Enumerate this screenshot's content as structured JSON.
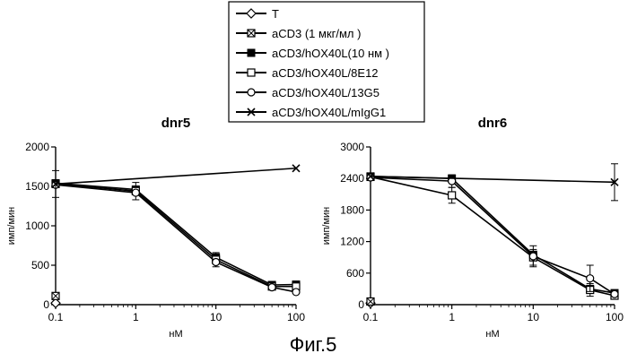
{
  "figure": {
    "caption": "Фиг.5"
  },
  "legend": {
    "entries": [
      {
        "label": "T",
        "marker": "diamond-open"
      },
      {
        "label": "aCD3 (1 мкг/мл   )",
        "marker": "square-crossed"
      },
      {
        "label": "aCD3/hOX40L(10 нм )",
        "marker": "square-filled"
      },
      {
        "label": "aCD3/hOX40L/8E12",
        "marker": "square-open"
      },
      {
        "label": "aCD3/hOX40L/13G5",
        "marker": "circle-open"
      },
      {
        "label": "aCD3/hOX40L/mIgG1",
        "marker": "x"
      }
    ]
  },
  "chart_data": [
    {
      "type": "line",
      "title": "dnr5",
      "xlabel": "нМ",
      "ylabel": "имп/мин",
      "x_scale": "log",
      "xlim": [
        0.1,
        100
      ],
      "ylim": [
        0,
        2000
      ],
      "x_ticks": [
        "0.1",
        "1",
        "10",
        "100"
      ],
      "y_ticks": [
        "0",
        "500",
        "1000",
        "1500",
        "2000"
      ],
      "grid": false,
      "legend_position": "top-center",
      "series": [
        {
          "name": "T",
          "marker": "diamond-open",
          "connect": false,
          "points": [
            [
              0.1,
              20
            ]
          ]
        },
        {
          "name": "aCD3 (1 мкг/мл   )",
          "marker": "square-crossed",
          "connect": false,
          "points": [
            [
              0.1,
              110
            ]
          ]
        },
        {
          "name": "aCD3/hOX40L(10 нм )",
          "marker": "square-filled",
          "connect": true,
          "points": [
            [
              0.1,
              1540
            ],
            [
              1,
              1460
            ],
            [
              10,
              600
            ],
            [
              50,
              250
            ],
            [
              100,
              255
            ]
          ],
          "errors": [
            0,
            0,
            0,
            0,
            0
          ]
        },
        {
          "name": "aCD3/hOX40L/8E12",
          "marker": "square-open",
          "connect": true,
          "points": [
            [
              0.1,
              1530
            ],
            [
              1,
              1440
            ],
            [
              10,
              570
            ],
            [
              50,
              230
            ],
            [
              100,
              230
            ]
          ],
          "errors": [
            0,
            110,
            90,
            0,
            40
          ]
        },
        {
          "name": "aCD3/hOX40L/13G5",
          "marker": "circle-open",
          "connect": true,
          "points": [
            [
              0.1,
              1520
            ],
            [
              1,
              1420
            ],
            [
              10,
              540
            ],
            [
              50,
              220
            ],
            [
              100,
              160
            ]
          ],
          "errors": [
            0,
            0,
            0,
            0,
            0
          ]
        },
        {
          "name": "aCD3/hOX40L/mIgG1",
          "marker": "x",
          "connect": true,
          "points": [
            [
              0.1,
              1530
            ],
            [
              100,
              1730
            ]
          ],
          "errors": [
            170,
            0
          ]
        }
      ]
    },
    {
      "type": "line",
      "title": "dnr6",
      "xlabel": "нМ",
      "ylabel": "имп/мин",
      "x_scale": "log",
      "xlim": [
        0.1,
        100
      ],
      "ylim": [
        0,
        3000
      ],
      "x_ticks": [
        "0.1",
        "1",
        "10",
        "100"
      ],
      "y_ticks": [
        "0",
        "600",
        "1200",
        "1800",
        "2400",
        "3000"
      ],
      "grid": false,
      "series": [
        {
          "name": "T",
          "marker": "diamond-open",
          "connect": false,
          "points": [
            [
              0.1,
              30
            ]
          ]
        },
        {
          "name": "aCD3 (1 мкг/мл   )",
          "marker": "square-crossed",
          "connect": false,
          "points": [
            [
              0.1,
              60
            ]
          ]
        },
        {
          "name": "aCD3/hOX40L(10 нм )",
          "marker": "square-filled",
          "connect": true,
          "points": [
            [
              0.1,
              2440
            ],
            [
              1,
              2400
            ],
            [
              10,
              950
            ],
            [
              50,
              300
            ],
            [
              100,
              220
            ]
          ],
          "errors": [
            0,
            0,
            0,
            0,
            0
          ]
        },
        {
          "name": "aCD3/hOX40L/8E12",
          "marker": "square-open",
          "connect": true,
          "points": [
            [
              0.1,
              2430
            ],
            [
              1,
              2080
            ],
            [
              10,
              900
            ],
            [
              50,
              280
            ],
            [
              100,
              170
            ]
          ],
          "errors": [
            0,
            150,
            150,
            120,
            0
          ]
        },
        {
          "name": "aCD3/hOX40L/13G5",
          "marker": "circle-open",
          "connect": true,
          "points": [
            [
              0.1,
              2420
            ],
            [
              1,
              2350
            ],
            [
              10,
              920
            ],
            [
              50,
              500
            ],
            [
              100,
              200
            ]
          ],
          "errors": [
            0,
            120,
            200,
            250,
            0
          ]
        },
        {
          "name": "aCD3/hOX40L/mIgG1",
          "marker": "x",
          "connect": true,
          "points": [
            [
              0.1,
              2440
            ],
            [
              100,
              2330
            ]
          ],
          "errors": [
            0,
            350
          ]
        }
      ]
    }
  ]
}
